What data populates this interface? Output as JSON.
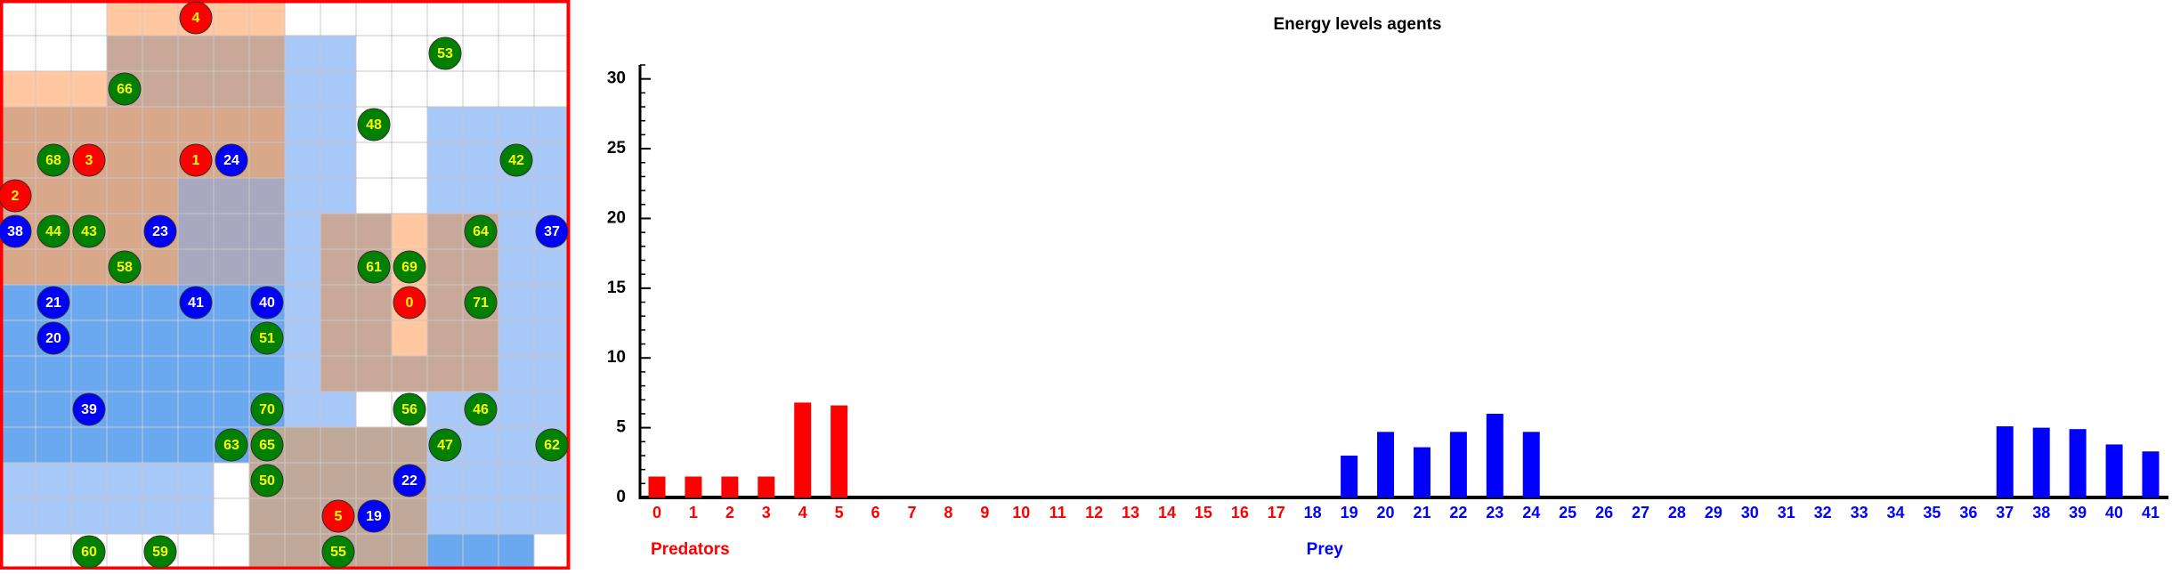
{
  "grid": {
    "agents": [
      {
        "label": "4",
        "color": "#ff0000"
      },
      {
        "label": "53",
        "color": "#008000"
      },
      {
        "label": "66",
        "color": "#008000"
      },
      {
        "label": "48",
        "color": "#008000"
      },
      {
        "label": "68",
        "color": "#008000"
      },
      {
        "label": "3",
        "color": "#ff0000"
      },
      {
        "label": "1",
        "color": "#ff0000"
      },
      {
        "label": "24",
        "color": "#0000ff"
      },
      {
        "label": "42",
        "color": "#008000"
      },
      {
        "label": "2",
        "color": "#ff0000"
      },
      {
        "label": "38",
        "color": "#0000ff"
      },
      {
        "label": "44",
        "color": "#008000"
      },
      {
        "label": "43",
        "color": "#008000"
      },
      {
        "label": "23",
        "color": "#0000ff"
      },
      {
        "label": "64",
        "color": "#008000"
      },
      {
        "label": "37",
        "color": "#0000ff"
      },
      {
        "label": "58",
        "color": "#008000"
      },
      {
        "label": "61",
        "color": "#008000"
      },
      {
        "label": "69",
        "color": "#008000"
      },
      {
        "label": "21",
        "color": "#0000ff"
      },
      {
        "label": "41",
        "color": "#0000ff"
      },
      {
        "label": "40",
        "color": "#0000ff"
      },
      {
        "label": "0",
        "color": "#ff0000"
      },
      {
        "label": "71",
        "color": "#008000"
      },
      {
        "label": "20",
        "color": "#0000ff"
      },
      {
        "label": "51",
        "color": "#008000"
      },
      {
        "label": "39",
        "color": "#0000ff"
      },
      {
        "label": "70",
        "color": "#008000"
      },
      {
        "label": "56",
        "color": "#008000"
      },
      {
        "label": "46",
        "color": "#008000"
      },
      {
        "label": "63",
        "color": "#008000"
      },
      {
        "label": "65",
        "color": "#008000"
      },
      {
        "label": "47",
        "color": "#008000"
      },
      {
        "label": "62",
        "color": "#008000"
      },
      {
        "label": "50",
        "color": "#008000"
      },
      {
        "label": "22",
        "color": "#0000ff"
      },
      {
        "label": "5",
        "color": "#ff0000"
      },
      {
        "label": "19",
        "color": "#0000ff"
      },
      {
        "label": "60",
        "color": "#008000"
      },
      {
        "label": "59",
        "color": "#008000"
      },
      {
        "label": "55",
        "color": "#008000"
      }
    ]
  },
  "chart_data": {
    "type": "bar",
    "title": "Energy levels agents",
    "categories": [
      "0",
      "1",
      "2",
      "3",
      "4",
      "5",
      "6",
      "7",
      "8",
      "9",
      "10",
      "11",
      "12",
      "13",
      "14",
      "15",
      "16",
      "17",
      "18",
      "19",
      "20",
      "21",
      "22",
      "23",
      "24",
      "25",
      "26",
      "27",
      "28",
      "29",
      "30",
      "31",
      "32",
      "33",
      "34",
      "35",
      "36",
      "37",
      "38",
      "39",
      "40",
      "41"
    ],
    "series": [
      {
        "name": "Predators",
        "color": "#ff0000",
        "values": [
          1.5,
          1.5,
          1.5,
          1.5,
          6.8,
          6.6,
          0,
          0,
          0,
          0,
          0,
          0,
          0,
          0,
          0,
          0,
          0,
          0,
          null,
          null,
          null,
          null,
          null,
          null,
          null,
          null,
          null,
          null,
          null,
          null,
          null,
          null,
          null,
          null,
          null,
          null,
          null,
          null,
          null,
          null,
          null,
          null
        ]
      },
      {
        "name": "Prey",
        "color": "#0000ff",
        "values": [
          null,
          null,
          null,
          null,
          null,
          null,
          null,
          null,
          null,
          null,
          null,
          null,
          null,
          null,
          null,
          null,
          null,
          null,
          0,
          3.0,
          4.7,
          3.6,
          4.7,
          6.0,
          4.7,
          0,
          0,
          0,
          0,
          0,
          0,
          0,
          0,
          0,
          0,
          0,
          0,
          5.1,
          5.0,
          4.9,
          3.8,
          3.3
        ]
      }
    ],
    "ylim": [
      0,
      31
    ],
    "yticks": [
      0,
      5,
      10,
      15,
      20,
      25,
      30
    ],
    "minor_tick_step": 1
  }
}
